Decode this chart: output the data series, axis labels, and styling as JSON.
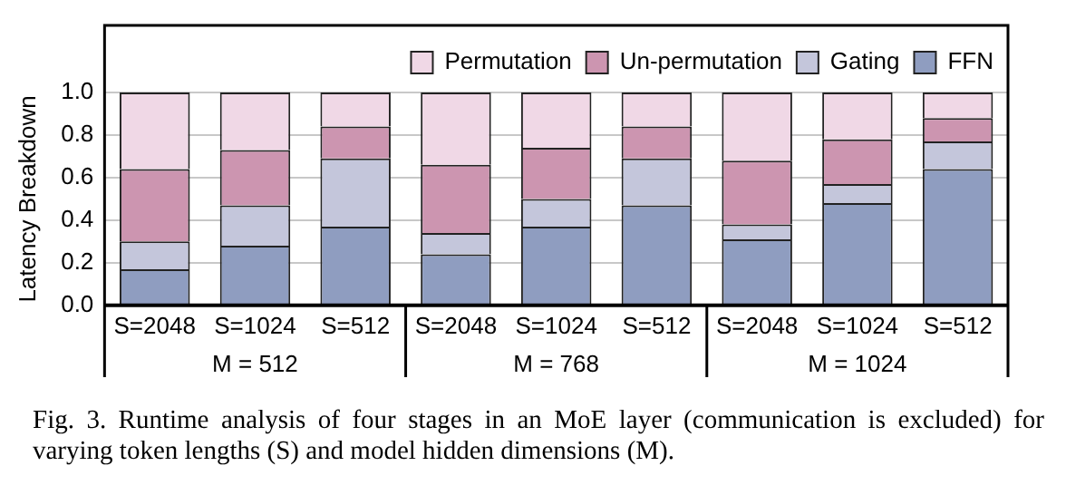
{
  "chart_data": {
    "type": "bar",
    "stacked": true,
    "ylabel": "Latency Breakdown",
    "categories": [
      "S=2048",
      "S=1024",
      "S=512",
      "S=2048",
      "S=1024",
      "S=512",
      "S=2048",
      "S=1024",
      "S=512"
    ],
    "series": [
      {
        "name": "FFN",
        "color": "#8f9dc0",
        "values": [
          0.17,
          0.28,
          0.37,
          0.24,
          0.37,
          0.47,
          0.31,
          0.48,
          0.64
        ]
      },
      {
        "name": "Gating",
        "color": "#c4c6db",
        "values": [
          0.13,
          0.19,
          0.32,
          0.1,
          0.13,
          0.22,
          0.07,
          0.09,
          0.13
        ]
      },
      {
        "name": "Un-permutation",
        "color": "#cc95b0",
        "values": [
          0.34,
          0.26,
          0.15,
          0.32,
          0.24,
          0.15,
          0.3,
          0.21,
          0.11
        ]
      },
      {
        "name": "Permutation",
        "color": "#f0d8e6",
        "values": [
          0.36,
          0.27,
          0.16,
          0.34,
          0.26,
          0.16,
          0.32,
          0.22,
          0.12
        ]
      }
    ],
    "ylim": [
      0,
      1.0
    ],
    "yticks": [
      {
        "value": 0,
        "label": "0.0"
      },
      0.2,
      0.4,
      0.6,
      0.8,
      {
        "value": 1,
        "label": "1.0"
      }
    ],
    "grid": "y",
    "legend": "top",
    "annotations": [
      "M = 512",
      "M = 768",
      "M = 1024",
      "Fig. 3.  Runtime analysis of four stages in an MoE layer (communication is excluded) for varying token lengths (S) and model hidden dimensions (M)."
    ]
  }
}
